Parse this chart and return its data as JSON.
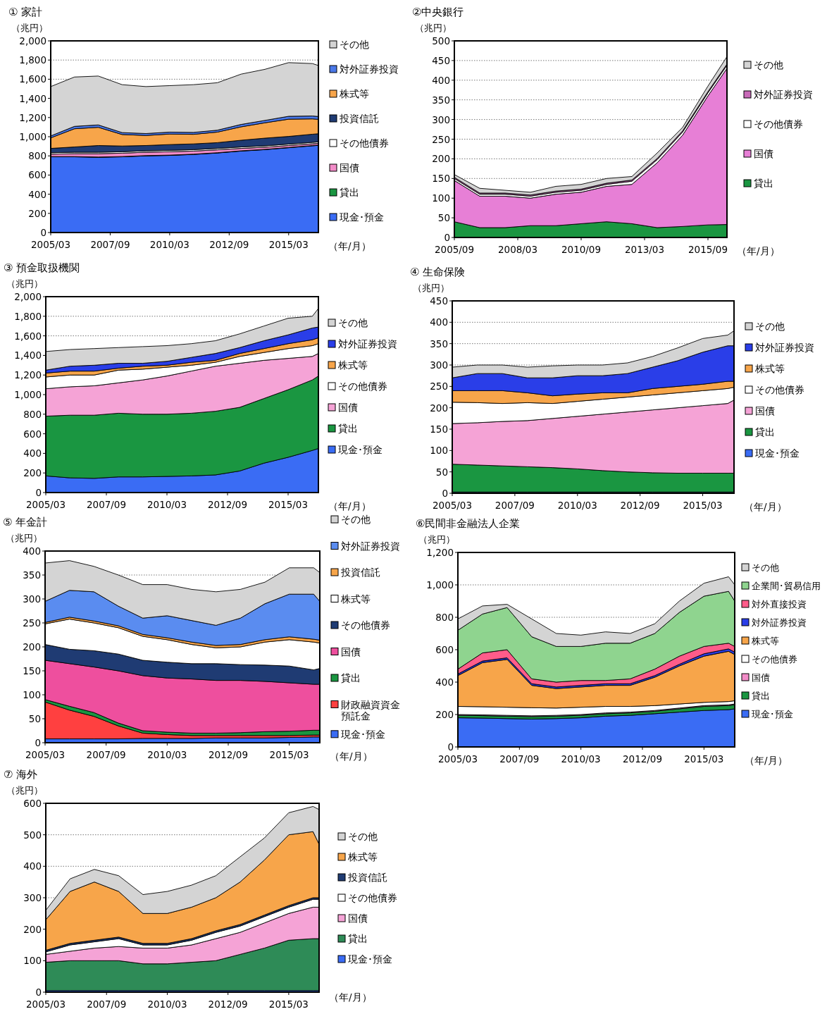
{
  "chart_data": [
    {
      "type": "area",
      "stacked": true,
      "title": "① 家計",
      "ylabel": "（兆円）",
      "xlabel": "（年/月）",
      "grid": "y",
      "legend": "right",
      "x": [
        "2005-03",
        "2006-03",
        "2007-03",
        "2008-03",
        "2009-03",
        "2010-03",
        "2011-03",
        "2012-03",
        "2013-03",
        "2014-03",
        "2015-03",
        "2016-03",
        "2016-06"
      ],
      "xlim": [
        "2005-03",
        "2016-06"
      ],
      "xticks": [
        {
          "value": "2005-03",
          "label": "2005/03"
        },
        {
          "value": "2007-09",
          "label": "2007/09"
        },
        {
          "value": "2010-03",
          "label": "2010/03"
        },
        {
          "value": "2012-09",
          "label": "2012/09"
        },
        {
          "value": "2015-03",
          "label": "2015/03"
        }
      ],
      "ylim": [
        0,
        2000
      ],
      "yticks": [
        0,
        200,
        400,
        600,
        800,
        {
          "value": 1000,
          "label": "1,000"
        },
        {
          "value": 1200,
          "label": "1,200"
        },
        {
          "value": 1400,
          "label": "1,400"
        },
        {
          "value": 1600,
          "label": "1,600"
        },
        {
          "value": 1800,
          "label": "1,800"
        },
        {
          "value": 2000,
          "label": "2,000"
        }
      ],
      "series": [
        {
          "name": "現金･預金",
          "color": "#3a6cf4",
          "values": [
            790,
            790,
            785,
            790,
            800,
            805,
            815,
            830,
            850,
            865,
            885,
            905,
            910
          ]
        },
        {
          "name": "貸出",
          "color": "#1a9641",
          "values": [
            3,
            3,
            3,
            3,
            3,
            3,
            3,
            3,
            3,
            3,
            3,
            3,
            3
          ]
        },
        {
          "name": "国債",
          "color": "#f28cc8",
          "values": [
            25,
            30,
            35,
            35,
            35,
            35,
            32,
            30,
            25,
            22,
            20,
            18,
            18
          ]
        },
        {
          "name": "その他債券",
          "color": "#ffffff",
          "values": [
            15,
            15,
            15,
            15,
            15,
            15,
            15,
            15,
            15,
            15,
            15,
            15,
            15
          ]
        },
        {
          "name": "投資信託",
          "color": "#1f3b73",
          "values": [
            45,
            55,
            70,
            60,
            55,
            60,
            60,
            60,
            70,
            80,
            80,
            85,
            85
          ]
        },
        {
          "name": "株式等",
          "color": "#f7a54a",
          "values": [
            110,
            190,
            190,
            120,
            105,
            110,
            100,
            110,
            140,
            160,
            180,
            160,
            150
          ]
        },
        {
          "name": "対外証券投資",
          "color": "#4a78e8",
          "values": [
            20,
            25,
            25,
            20,
            20,
            20,
            20,
            20,
            25,
            25,
            30,
            30,
            30
          ]
        },
        {
          "name": "その他",
          "color": "#d4d4d4",
          "values": [
            515,
            515,
            510,
            500,
            490,
            485,
            498,
            495,
            525,
            533,
            560,
            547,
            532
          ]
        }
      ]
    },
    {
      "type": "area",
      "stacked": true,
      "title": "②中央銀行",
      "ylabel": "（兆円）",
      "xlabel": "（年/月）",
      "grid": "y",
      "legend": "right",
      "x": [
        "2005-09",
        "2006-09",
        "2007-09",
        "2008-09",
        "2009-09",
        "2010-09",
        "2011-09",
        "2012-09",
        "2013-09",
        "2014-09",
        "2015-09",
        "2016-06"
      ],
      "xlim": [
        "2005-09",
        "2016-06"
      ],
      "xticks": [
        {
          "value": "2005-09",
          "label": "2005/09"
        },
        {
          "value": "2008-03",
          "label": "2008/03"
        },
        {
          "value": "2010-09",
          "label": "2010/09"
        },
        {
          "value": "2013-03",
          "label": "2013/03"
        },
        {
          "value": "2015-09",
          "label": "2015/09"
        }
      ],
      "ylim": [
        0,
        500
      ],
      "yticks": [
        0,
        50,
        100,
        150,
        200,
        250,
        300,
        350,
        400,
        450,
        500
      ],
      "series": [
        {
          "name": "貸出",
          "color": "#1a9641",
          "values": [
            40,
            25,
            25,
            30,
            30,
            35,
            40,
            35,
            25,
            28,
            32,
            33
          ]
        },
        {
          "name": "国債",
          "color": "#e77fd6",
          "values": [
            105,
            80,
            80,
            70,
            80,
            80,
            90,
            100,
            165,
            232,
            328,
            397
          ]
        },
        {
          "name": "その他債券",
          "color": "#ffffff",
          "values": [
            5,
            5,
            5,
            5,
            5,
            5,
            5,
            8,
            8,
            8,
            8,
            8
          ]
        },
        {
          "name": "対外証券投資",
          "color": "#c86ab8",
          "values": [
            3,
            3,
            3,
            3,
            3,
            3,
            3,
            3,
            3,
            3,
            3,
            3
          ]
        },
        {
          "name": "その他",
          "color": "#d4d4d4",
          "values": [
            7,
            12,
            7,
            7,
            12,
            12,
            12,
            9,
            14,
            9,
            14,
            19
          ]
        }
      ]
    },
    {
      "type": "area",
      "stacked": true,
      "title": "③ 預金取扱機関",
      "ylabel": "（兆円）",
      "xlabel": "（年/月）",
      "grid": "y",
      "legend": "right",
      "x": [
        "2005-03",
        "2006-03",
        "2007-03",
        "2008-03",
        "2009-03",
        "2010-03",
        "2011-03",
        "2012-03",
        "2013-03",
        "2014-03",
        "2015-03",
        "2016-03",
        "2016-06"
      ],
      "xlim": [
        "2005-03",
        "2016-06"
      ],
      "xticks": [
        {
          "value": "2005-03",
          "label": "2005/03"
        },
        {
          "value": "2007-09",
          "label": "2007/09"
        },
        {
          "value": "2010-03",
          "label": "2010/03"
        },
        {
          "value": "2012-09",
          "label": "2012/09"
        },
        {
          "value": "2015-03",
          "label": "2015/03"
        }
      ],
      "ylim": [
        0,
        2000
      ],
      "yticks": [
        0,
        200,
        400,
        600,
        800,
        {
          "value": 1000,
          "label": "1,000"
        },
        {
          "value": 1200,
          "label": "1,200"
        },
        {
          "value": 1400,
          "label": "1,400"
        },
        {
          "value": 1600,
          "label": "1,600"
        },
        {
          "value": 1800,
          "label": "1,800"
        },
        {
          "value": 2000,
          "label": "2,000"
        }
      ],
      "series": [
        {
          "name": "現金･預金",
          "color": "#3a6cf4",
          "values": [
            170,
            150,
            145,
            160,
            160,
            165,
            170,
            180,
            220,
            300,
            360,
            430,
            450
          ]
        },
        {
          "name": "貸出",
          "color": "#1a9641",
          "values": [
            610,
            640,
            645,
            650,
            640,
            635,
            640,
            650,
            650,
            660,
            690,
            720,
            740
          ]
        },
        {
          "name": "国債",
          "color": "#f5a3d6",
          "values": [
            280,
            290,
            300,
            310,
            350,
            390,
            430,
            460,
            450,
            390,
            320,
            240,
            230
          ]
        },
        {
          "name": "その他債券",
          "color": "#ffffff",
          "values": [
            120,
            120,
            110,
            130,
            110,
            90,
            60,
            40,
            70,
            80,
            100,
            110,
            100
          ]
        },
        {
          "name": "株式等",
          "color": "#f7a54a",
          "values": [
            40,
            40,
            40,
            20,
            30,
            20,
            30,
            20,
            30,
            40,
            50,
            60,
            60
          ]
        },
        {
          "name": "対外証券投資",
          "color": "#2a3ee8",
          "values": [
            30,
            50,
            60,
            50,
            30,
            40,
            50,
            70,
            60,
            80,
            90,
            120,
            110
          ]
        },
        {
          "name": "その他",
          "color": "#d4d4d4",
          "values": [
            190,
            170,
            170,
            160,
            170,
            160,
            140,
            130,
            140,
            150,
            170,
            120,
            190
          ]
        }
      ]
    },
    {
      "type": "area",
      "stacked": true,
      "title": "④ 生命保険",
      "ylabel": "（兆円）",
      "xlabel": "（年/月）",
      "grid": "y",
      "legend": "right",
      "x": [
        "2005-03",
        "2006-03",
        "2007-03",
        "2008-03",
        "2009-03",
        "2010-03",
        "2011-03",
        "2012-03",
        "2013-03",
        "2014-03",
        "2015-03",
        "2016-03",
        "2016-06"
      ],
      "xlim": [
        "2005-03",
        "2016-06"
      ],
      "xticks": [
        {
          "value": "2005-03",
          "label": "2005/03"
        },
        {
          "value": "2007-09",
          "label": "2007/09"
        },
        {
          "value": "2010-03",
          "label": "2010/03"
        },
        {
          "value": "2012-09",
          "label": "2012/09"
        },
        {
          "value": "2015-03",
          "label": "2015/03"
        }
      ],
      "ylim": [
        0,
        450
      ],
      "yticks": [
        0,
        50,
        100,
        150,
        200,
        250,
        300,
        350,
        400,
        450
      ],
      "series": [
        {
          "name": "現金･預金",
          "color": "#3a6cf4",
          "values": [
            3,
            3,
            3,
            3,
            3,
            3,
            3,
            3,
            3,
            3,
            3,
            3,
            3
          ]
        },
        {
          "name": "貸出",
          "color": "#1a9641",
          "values": [
            65,
            63,
            61,
            59,
            57,
            54,
            50,
            47,
            45,
            44,
            44,
            44,
            44
          ]
        },
        {
          "name": "国債",
          "color": "#f5a3d6",
          "values": [
            95,
            99,
            104,
            108,
            115,
            123,
            132,
            140,
            147,
            153,
            158,
            163,
            171
          ]
        },
        {
          "name": "その他債券",
          "color": "#ffffff",
          "values": [
            50,
            47,
            42,
            42,
            35,
            35,
            35,
            35,
            35,
            35,
            35,
            35,
            30
          ]
        },
        {
          "name": "株式等",
          "color": "#f7a54a",
          "values": [
            27,
            28,
            30,
            23,
            18,
            17,
            15,
            10,
            15,
            15,
            15,
            17,
            14
          ]
        },
        {
          "name": "対外証券投資",
          "color": "#2a3ee8",
          "values": [
            30,
            40,
            40,
            35,
            42,
            43,
            40,
            45,
            50,
            60,
            75,
            83,
            83
          ]
        },
        {
          "name": "その他",
          "color": "#d4d4d4",
          "values": [
            25,
            20,
            20,
            25,
            28,
            25,
            25,
            25,
            25,
            30,
            32,
            25,
            35
          ]
        }
      ]
    },
    {
      "type": "area",
      "stacked": true,
      "title": "⑤ 年金計",
      "ylabel": "（兆円）",
      "xlabel": "（年/月）",
      "grid": "y",
      "legend": "right",
      "x": [
        "2005-03",
        "2006-03",
        "2007-03",
        "2008-03",
        "2009-03",
        "2010-03",
        "2011-03",
        "2012-03",
        "2013-03",
        "2014-03",
        "2015-03",
        "2016-03",
        "2016-06"
      ],
      "xlim": [
        "2005-03",
        "2016-06"
      ],
      "xticks": [
        {
          "value": "2005-03",
          "label": "2005/03"
        },
        {
          "value": "2007-09",
          "label": "2007/09"
        },
        {
          "value": "2010-03",
          "label": "2010/03"
        },
        {
          "value": "2012-09",
          "label": "2012/09"
        },
        {
          "value": "2015-03",
          "label": "2015/03"
        }
      ],
      "ylim": [
        0,
        400
      ],
      "yticks": [
        0,
        50,
        100,
        150,
        200,
        250,
        300,
        350,
        400
      ],
      "series": [
        {
          "name": "現金･預金",
          "color": "#3a6cf4",
          "values": [
            8,
            8,
            8,
            8,
            9,
            9,
            9,
            10,
            10,
            10,
            11,
            12,
            12
          ]
        },
        {
          "name": "財政融資資金預託金",
          "color": "#ff4040",
          "values": [
            77,
            60,
            47,
            27,
            11,
            8,
            6,
            5,
            5,
            5,
            4,
            4,
            4
          ]
        },
        {
          "name": "貸出",
          "color": "#1a9641",
          "values": [
            5,
            8,
            8,
            6,
            5,
            5,
            5,
            5,
            6,
            8,
            9,
            10,
            10
          ]
        },
        {
          "name": "国債",
          "color": "#ee4f9e",
          "values": [
            82,
            89,
            95,
            109,
            115,
            113,
            113,
            110,
            109,
            105,
            101,
            96,
            96
          ]
        },
        {
          "name": "その他債券",
          "color": "#1f3b73",
          "values": [
            33,
            30,
            34,
            35,
            32,
            33,
            32,
            35,
            33,
            34,
            35,
            30,
            33
          ]
        },
        {
          "name": "株式等",
          "color": "#ffffff",
          "values": [
            43,
            63,
            58,
            55,
            50,
            47,
            40,
            33,
            37,
            48,
            55,
            58,
            53
          ]
        },
        {
          "name": "投資信託",
          "color": "#f7a54a",
          "values": [
            3,
            4,
            4,
            4,
            4,
            4,
            5,
            5,
            5,
            5,
            6,
            6,
            6
          ]
        },
        {
          "name": "対外証券投資",
          "color": "#5a8cf0",
          "values": [
            44,
            56,
            61,
            41,
            34,
            46,
            45,
            42,
            55,
            75,
            89,
            94,
            81
          ]
        },
        {
          "name": "その他",
          "color": "#d4d4d4",
          "values": [
            80,
            62,
            53,
            65,
            70,
            65,
            65,
            70,
            60,
            45,
            55,
            55,
            60
          ]
        }
      ]
    },
    {
      "type": "area",
      "stacked": true,
      "title": "⑥民間非金融法人企業",
      "ylabel": "（兆円）",
      "xlabel": "（年/月）",
      "grid": "y",
      "legend": "right",
      "x": [
        "2005-03",
        "2006-03",
        "2007-03",
        "2008-03",
        "2009-03",
        "2010-03",
        "2011-03",
        "2012-03",
        "2013-03",
        "2014-03",
        "2015-03",
        "2016-03",
        "2016-06"
      ],
      "xlim": [
        "2005-03",
        "2016-06"
      ],
      "xticks": [
        {
          "value": "2005-03",
          "label": "2005/03"
        },
        {
          "value": "2007-09",
          "label": "2007/09"
        },
        {
          "value": "2010-03",
          "label": "2010/03"
        },
        {
          "value": "2012-09",
          "label": "2012/09"
        },
        {
          "value": "2015-03",
          "label": "2015/03"
        }
      ],
      "ylim": [
        0,
        1200
      ],
      "yticks": [
        0,
        200,
        400,
        600,
        800,
        {
          "value": 1000,
          "label": "1,000"
        },
        {
          "value": 1200,
          "label": "1,200"
        }
      ],
      "series": [
        {
          "name": "現金･預金",
          "color": "#3a6cf4",
          "values": [
            180,
            178,
            175,
            172,
            175,
            180,
            190,
            195,
            205,
            215,
            225,
            230,
            235
          ]
        },
        {
          "name": "貸出",
          "color": "#1a9641",
          "values": [
            15,
            15,
            15,
            15,
            15,
            15,
            15,
            15,
            15,
            20,
            25,
            25,
            25
          ]
        },
        {
          "name": "国債",
          "color": "#f28cc8",
          "values": [
            5,
            5,
            5,
            5,
            5,
            5,
            5,
            5,
            5,
            5,
            5,
            5,
            5
          ]
        },
        {
          "name": "その他債券",
          "color": "#ffffff",
          "values": [
            50,
            50,
            50,
            50,
            45,
            45,
            40,
            35,
            30,
            25,
            20,
            20,
            20
          ]
        },
        {
          "name": "株式等",
          "color": "#f7a54a",
          "values": [
            190,
            272,
            295,
            138,
            120,
            125,
            130,
            130,
            175,
            235,
            285,
            310,
            285
          ]
        },
        {
          "name": "対外証券投資",
          "color": "#2a3ee8",
          "values": [
            10,
            10,
            10,
            10,
            10,
            10,
            10,
            10,
            10,
            10,
            15,
            15,
            15
          ]
        },
        {
          "name": "対外直接投資",
          "color": "#ff5c8a",
          "values": [
            30,
            50,
            50,
            30,
            30,
            30,
            20,
            30,
            40,
            50,
            45,
            35,
            35
          ]
        },
        {
          "name": "企業間･貿易信用",
          "color": "#8fd48f",
          "values": [
            240,
            240,
            260,
            260,
            220,
            210,
            230,
            220,
            220,
            270,
            310,
            320,
            280
          ]
        },
        {
          "name": "その他",
          "color": "#d4d4d4",
          "values": [
            70,
            50,
            20,
            110,
            80,
            70,
            70,
            60,
            60,
            70,
            80,
            90,
            100
          ]
        }
      ]
    },
    {
      "type": "area",
      "stacked": true,
      "title": "⑦ 海外",
      "ylabel": "（兆円）",
      "xlabel": "（年/月）",
      "grid": "y",
      "legend": "right",
      "x": [
        "2005-03",
        "2006-03",
        "2007-03",
        "2008-03",
        "2009-03",
        "2010-03",
        "2011-03",
        "2012-03",
        "2013-03",
        "2014-03",
        "2015-03",
        "2016-03",
        "2016-06"
      ],
      "xlim": [
        "2005-03",
        "2016-06"
      ],
      "xticks": [
        {
          "value": "2005-03",
          "label": "2005/03"
        },
        {
          "value": "2007-09",
          "label": "2007/09"
        },
        {
          "value": "2010-03",
          "label": "2010/03"
        },
        {
          "value": "2012-09",
          "label": "2012/09"
        },
        {
          "value": "2015-03",
          "label": "2015/03"
        }
      ],
      "ylim": [
        0,
        600
      ],
      "yticks": [
        0,
        100,
        200,
        300,
        400,
        500,
        600
      ],
      "series": [
        {
          "name": "現金･預金",
          "color": "#3a6cf4",
          "values": [
            5,
            5,
            5,
            5,
            5,
            5,
            5,
            5,
            5,
            5,
            5,
            5,
            5
          ]
        },
        {
          "name": "貸出",
          "color": "#2e8b57",
          "values": [
            90,
            95,
            95,
            95,
            85,
            85,
            90,
            95,
            115,
            135,
            160,
            165,
            165
          ]
        },
        {
          "name": "国債",
          "color": "#f5a3d6",
          "values": [
            25,
            30,
            40,
            45,
            50,
            50,
            55,
            70,
            70,
            80,
            85,
            100,
            100
          ]
        },
        {
          "name": "その他債券",
          "color": "#ffffff",
          "values": [
            8,
            20,
            20,
            25,
            10,
            10,
            15,
            20,
            20,
            20,
            20,
            25,
            25
          ]
        },
        {
          "name": "投資信託",
          "color": "#1f3b73",
          "values": [
            5,
            5,
            5,
            5,
            5,
            5,
            5,
            5,
            5,
            5,
            5,
            5,
            5
          ]
        },
        {
          "name": "株式等",
          "color": "#f7a54a",
          "values": [
            97,
            165,
            185,
            145,
            95,
            95,
            100,
            105,
            135,
            175,
            225,
            210,
            170
          ]
        },
        {
          "name": "その他",
          "color": "#d4d4d4",
          "values": [
            30,
            40,
            40,
            50,
            60,
            70,
            70,
            70,
            80,
            70,
            70,
            80,
            110
          ]
        }
      ]
    }
  ]
}
